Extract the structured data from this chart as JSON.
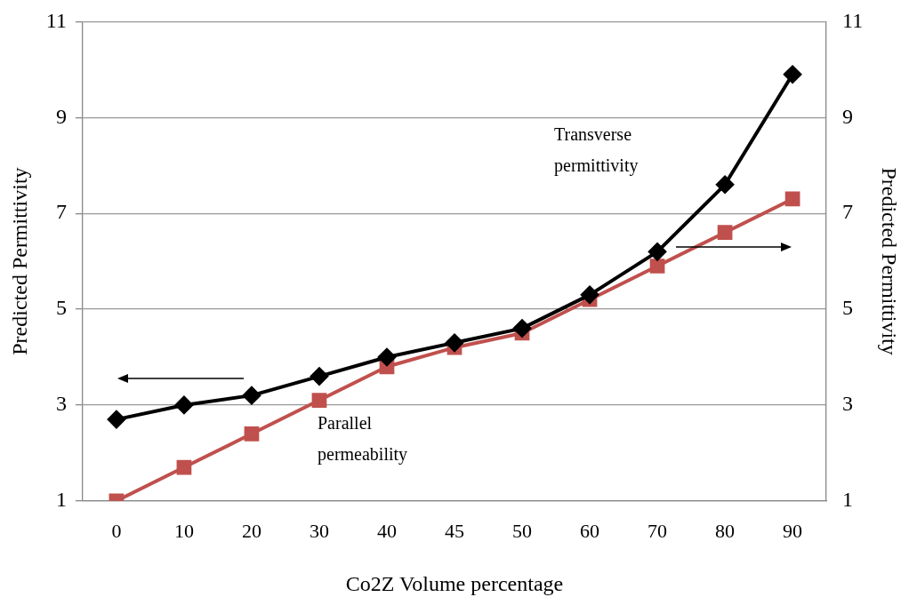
{
  "chart_data": {
    "type": "line",
    "xlabel": "Co2Z Volume percentage",
    "ylabel": "Predicted Permittivity",
    "y2label": "Predicted Permittivity",
    "categories": [
      "0",
      "10",
      "20",
      "30",
      "40",
      "45",
      "50",
      "60",
      "70",
      "80",
      "90"
    ],
    "series": [
      {
        "color": "#000000",
        "marker": "diamond",
        "values": [
          2.7,
          3.0,
          3.2,
          3.6,
          4.0,
          4.3,
          4.6,
          5.3,
          6.2,
          7.6,
          9.9
        ]
      },
      {
        "color": "#c0504d",
        "marker": "square",
        "values": [
          1.0,
          1.7,
          2.4,
          3.1,
          3.8,
          4.2,
          4.5,
          5.2,
          5.9,
          6.6,
          7.3
        ]
      }
    ],
    "ylim": [
      1,
      11
    ],
    "yticks": [
      1,
      3,
      5,
      7,
      9,
      11
    ],
    "y2lim": [
      1,
      11
    ],
    "y2ticks": [
      1,
      3,
      5,
      7,
      9,
      11
    ],
    "grid": "y",
    "legend": false,
    "line_style": "solid",
    "annotations": [
      "Transverse permittivity",
      "Parallel permeability"
    ]
  }
}
